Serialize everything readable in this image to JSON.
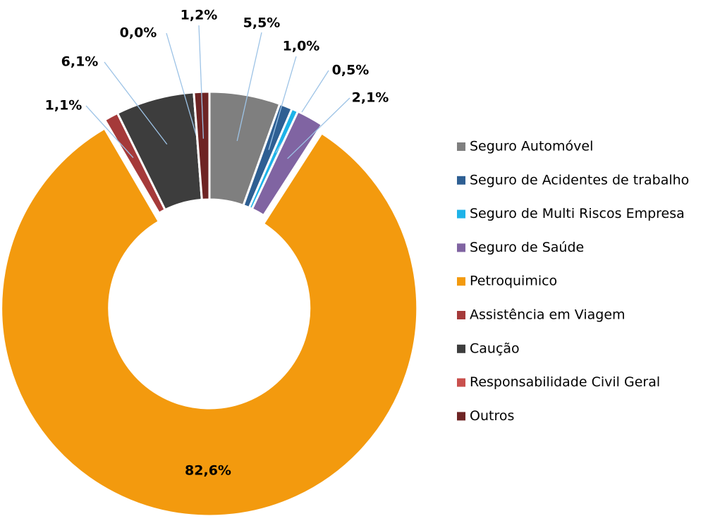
{
  "chart_data": {
    "type": "donut",
    "categories": [
      "Seguro Automóvel",
      "Seguro de Acidentes de trabalho",
      "Seguro de Multi Riscos Empresa",
      "Seguro de Saúde",
      "Petroquimico",
      "Assistência em Viagem",
      "Caução",
      "Responsabilidade Civil Geral",
      "Outros"
    ],
    "values": [
      5.5,
      1.0,
      0.5,
      2.1,
      82.6,
      1.1,
      6.1,
      0.0,
      1.2
    ],
    "value_labels": [
      "5,5%",
      "1,0%",
      "0,5%",
      "2,1%",
      "82,6%",
      "1,1%",
      "6,1%",
      "0,0%",
      "1,2%"
    ],
    "colors": [
      "#7f7f7f",
      "#2e5f93",
      "#1eb3e8",
      "#8064a2",
      "#f39a0e",
      "#a53a3a",
      "#3d3d3d",
      "#c9504d",
      "#6e2424"
    ],
    "exploded": "Petroquimico",
    "legend": "right"
  }
}
